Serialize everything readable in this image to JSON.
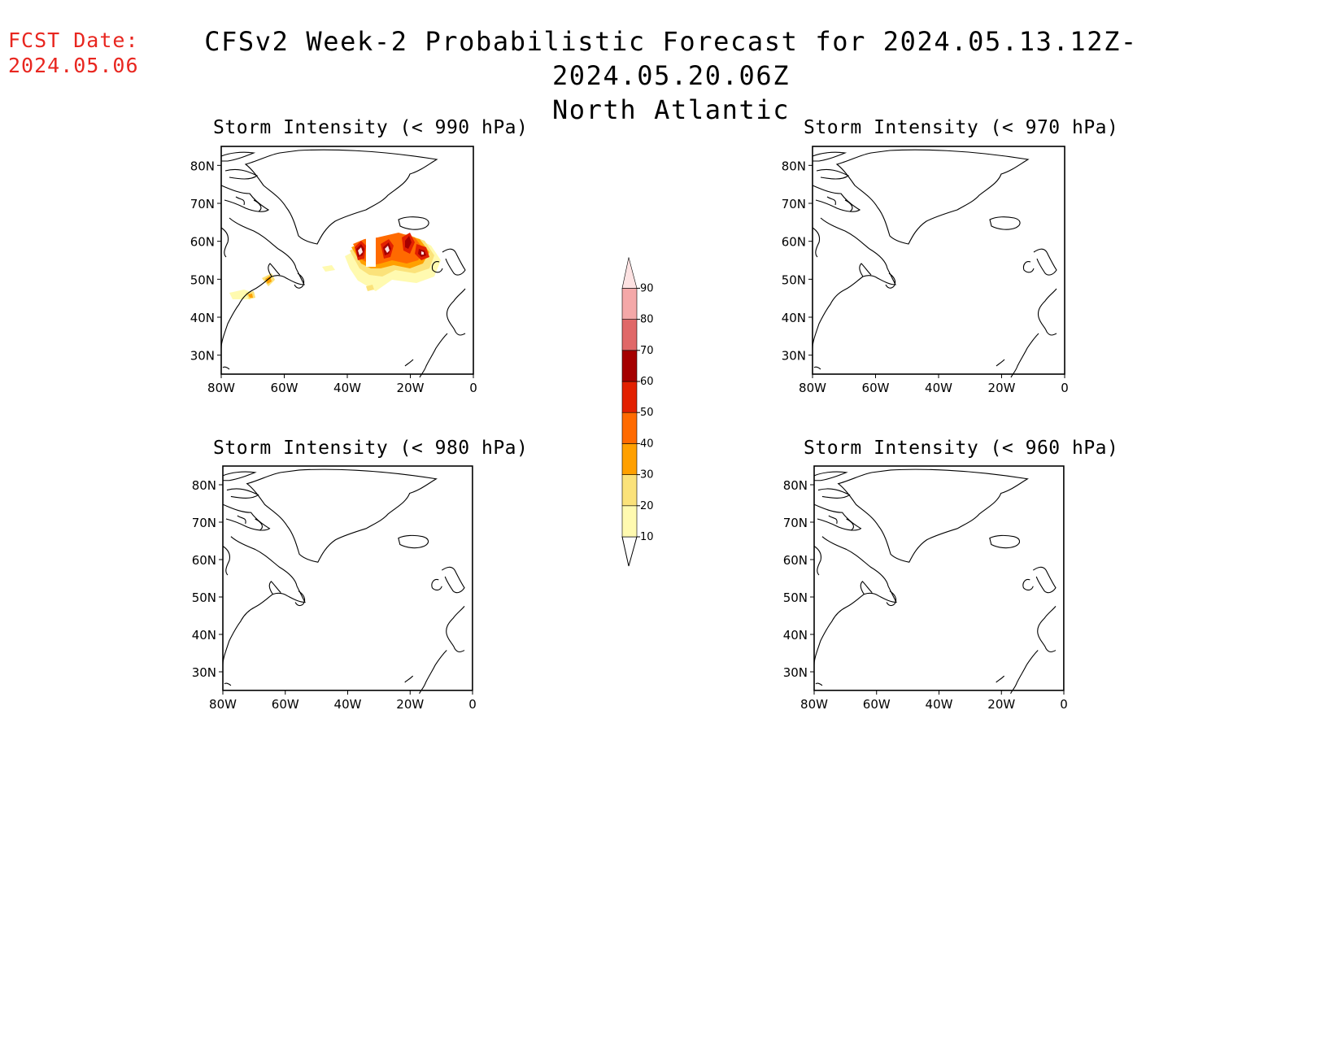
{
  "forecast_date": {
    "label": "FCST Date:",
    "value": "2024.05.06",
    "color": "#e8261f"
  },
  "title": {
    "line1": "CFSv2 Week-2 Probabilistic Forecast for 2024.05.13.12Z-2024.05.20.06Z",
    "line2": "North Atlantic"
  },
  "axes": {
    "lon_ticks": [
      "80W",
      "60W",
      "40W",
      "20W",
      "0"
    ],
    "lat_ticks": [
      "80N",
      "70N",
      "60N",
      "50N",
      "40N",
      "30N"
    ]
  },
  "panels": [
    {
      "id": "p990",
      "title": "Storm Intensity (< 990 hPa)",
      "has_data": true
    },
    {
      "id": "p970",
      "title": "Storm Intensity (< 970 hPa)",
      "has_data": false
    },
    {
      "id": "p980",
      "title": "Storm Intensity (< 980 hPa)",
      "has_data": false
    },
    {
      "id": "p960",
      "title": "Storm Intensity (< 960 hPa)",
      "has_data": false
    }
  ],
  "colorbar": {
    "labels": [
      "10",
      "20",
      "30",
      "40",
      "50",
      "60",
      "70",
      "80",
      "90"
    ],
    "colors": [
      "#fffab0",
      "#fbe27a",
      "#ffa000",
      "#ff6a00",
      "#e22000",
      "#a50000",
      "#e06868",
      "#f4a8a8",
      "#fde2e2"
    ]
  }
}
